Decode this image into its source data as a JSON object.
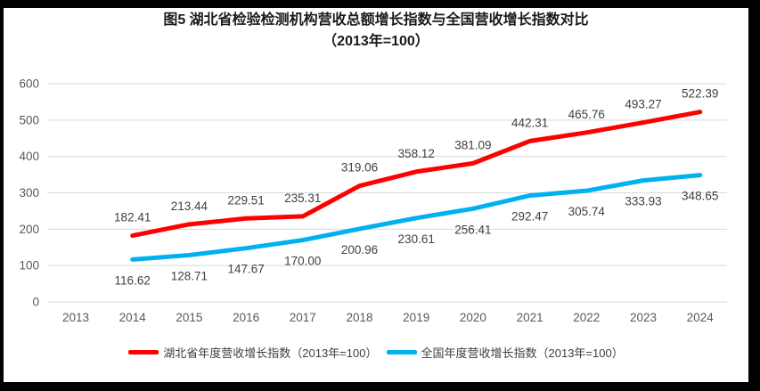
{
  "title": {
    "line1": "图5 湖北省检验检测机构营收总额增长指数与全国营收增长指数对比",
    "line2": "（2013年=100）"
  },
  "colors": {
    "hubei_series": "#FF0000",
    "national_series": "#00B0F0",
    "gridline": "#D9D9D9",
    "axis_label": "#595959",
    "data_label": "#404040",
    "frame_border": "#000000",
    "background": "#FFFFFF"
  },
  "chart_data": {
    "type": "line",
    "title": "图5 湖北省检验检测机构营收总额增长指数与全国营收增长指数对比（2013年=100）",
    "categories": [
      "2013",
      "2014",
      "2015",
      "2016",
      "2017",
      "2018",
      "2019",
      "2020",
      "2021",
      "2022",
      "2023",
      "2024"
    ],
    "series": [
      {
        "name": "湖北省年度营收增长指数（2013年=100）",
        "color": "#FF0000",
        "start_category": "2014",
        "values": [
          182.41,
          213.44,
          229.51,
          235.31,
          319.06,
          358.12,
          381.09,
          442.31,
          465.76,
          493.27,
          522.39
        ],
        "label_position": "above",
        "label_decimals": 2
      },
      {
        "name": "全国年度营收增长指数（2013年=100）",
        "color": "#00B0F0",
        "start_category": "2014",
        "values": [
          116.62,
          128.71,
          147.67,
          170.0,
          200.96,
          230.61,
          256.41,
          292.47,
          305.74,
          333.93,
          348.65
        ],
        "label_position": "below",
        "label_decimals": 2
      }
    ],
    "ylim": [
      0,
      600
    ],
    "ytick_interval": 100,
    "yticks": [
      0,
      100,
      200,
      300,
      400,
      500,
      600
    ],
    "grid": true,
    "legend_position": "bottom"
  },
  "legend": {
    "items": [
      {
        "label": "湖北省年度营收增长指数（2013年=100）",
        "color": "#FF0000"
      },
      {
        "label": "全国年度营收增长指数（2013年=100）",
        "color": "#00B0F0"
      }
    ]
  }
}
